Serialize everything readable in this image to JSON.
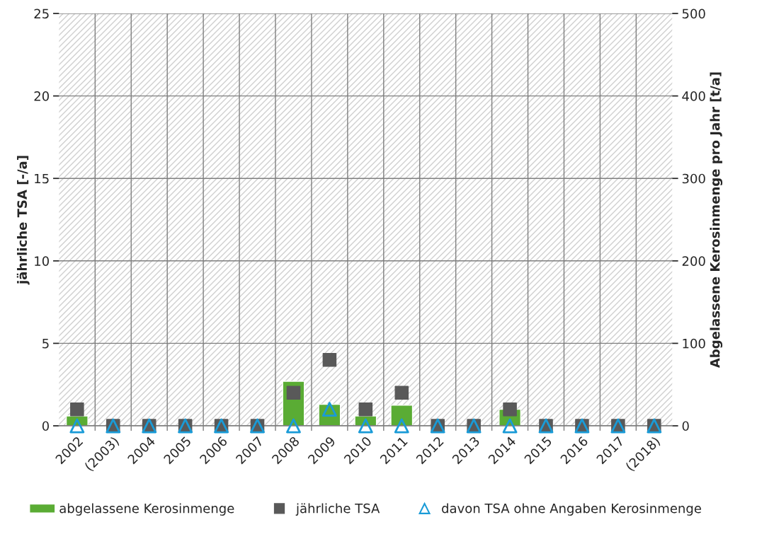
{
  "chart_data": {
    "type": "bar",
    "categories": [
      "2002",
      "(2003)",
      "2004",
      "2005",
      "2006",
      "2007",
      "2008",
      "2009",
      "2010",
      "2011",
      "2012",
      "2013",
      "2014",
      "2015",
      "2016",
      "2017",
      "(2018)"
    ],
    "series": [
      {
        "name": "abgelassene Kerosinmenge",
        "axis": "y2",
        "color": "#5aac34",
        "values": [
          12,
          null,
          null,
          null,
          null,
          null,
          54,
          26,
          12,
          25,
          null,
          null,
          20,
          null,
          null,
          null,
          null
        ]
      },
      {
        "name": "jährliche TSA",
        "type": "scatter",
        "marker": "square",
        "color": "#595959",
        "values": [
          1,
          0,
          0,
          0,
          0,
          0,
          2,
          4,
          1,
          2,
          0,
          0,
          1,
          0,
          0,
          0,
          0
        ]
      },
      {
        "name": "davon TSA ohne Angaben Kerosinmenge",
        "type": "scatter",
        "marker": "triangle",
        "color": "#1a9bd7",
        "values": [
          0,
          0,
          0,
          0,
          0,
          0,
          0,
          1,
          0,
          0,
          0,
          0,
          0,
          0,
          0,
          0,
          0
        ]
      }
    ],
    "ylabel": "jährliche TSA [-/a]",
    "y2label": "Abgelassene Kerosinmenge pro Jahr [t/a]",
    "ylim": [
      0,
      25
    ],
    "yticks": [
      0,
      5,
      10,
      15,
      20,
      25
    ],
    "y2lim": [
      0,
      500
    ],
    "y2ticks": [
      0,
      100,
      200,
      300,
      400,
      500
    ],
    "grid": true,
    "legend": "bottom"
  }
}
